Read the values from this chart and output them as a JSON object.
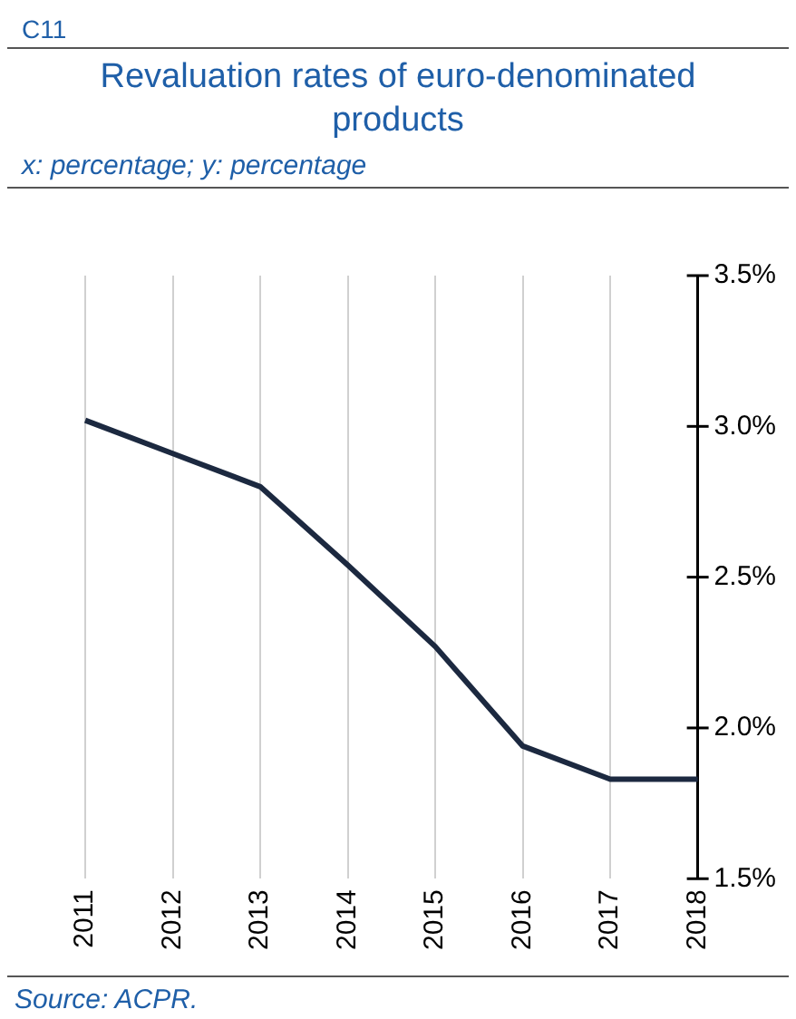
{
  "chart_data": {
    "type": "line",
    "title": "Revaluation rates of euro-denominated products",
    "subtitle": "x: percentage; y: percentage",
    "annotations": [
      "C11",
      "Source: ACPR."
    ],
    "categories": [
      "2011",
      "2012",
      "2013",
      "2014",
      "2015",
      "2016",
      "2017",
      "2018"
    ],
    "series": [
      {
        "color": "#1c2940",
        "values": [
          3.02,
          2.91,
          2.8,
          2.54,
          2.27,
          1.94,
          1.83,
          1.83
        ]
      }
    ],
    "ylim": [
      1.5,
      3.5
    ],
    "yticks": [
      {
        "value": 1.5,
        "label": "1.5%"
      },
      {
        "value": 2,
        "label": "2.0%"
      },
      {
        "value": 2.5,
        "label": "2.5%"
      },
      {
        "value": 3,
        "label": "3.0%"
      },
      {
        "value": 3.5,
        "label": "3.5%"
      }
    ],
    "grid": "x",
    "legend": false,
    "marker": "none",
    "line_style": "solid"
  }
}
